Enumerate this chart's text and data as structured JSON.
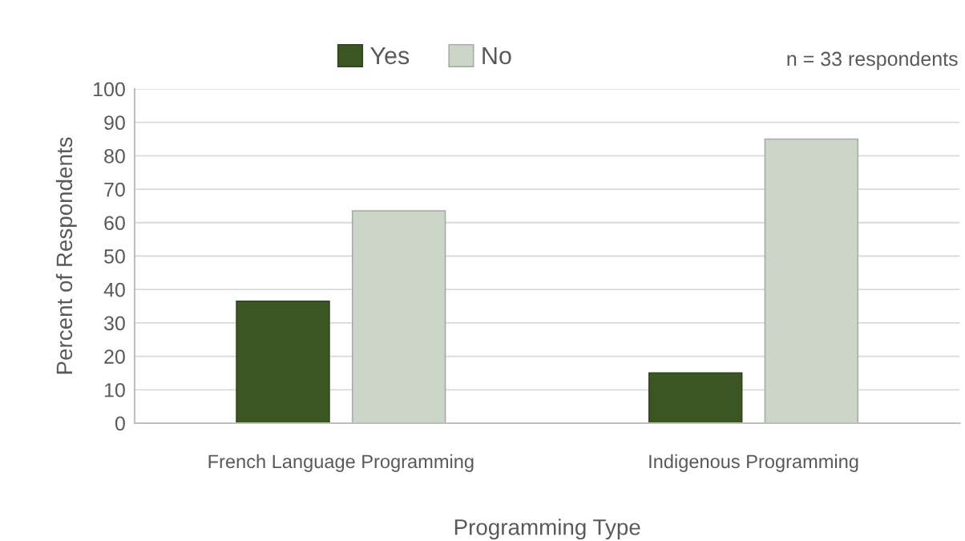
{
  "chart_data": {
    "type": "bar",
    "xlabel": "Programming Type",
    "ylabel": "Percent of Respondents",
    "annotations": [
      "n = 33 respondents"
    ],
    "categories": [
      "French Language Programming",
      "Indigenous Programming"
    ],
    "series": [
      {
        "name": "Yes",
        "color": "#3b5623",
        "values": [
          36.5,
          15
        ]
      },
      {
        "name": "No",
        "color": "#cbd5c8",
        "values": [
          63.5,
          85
        ]
      }
    ],
    "ylim": [
      0,
      100
    ],
    "yticks": [
      0,
      10,
      20,
      30,
      40,
      50,
      60,
      70,
      80,
      90,
      100
    ],
    "grid": "y",
    "legend": "top"
  }
}
